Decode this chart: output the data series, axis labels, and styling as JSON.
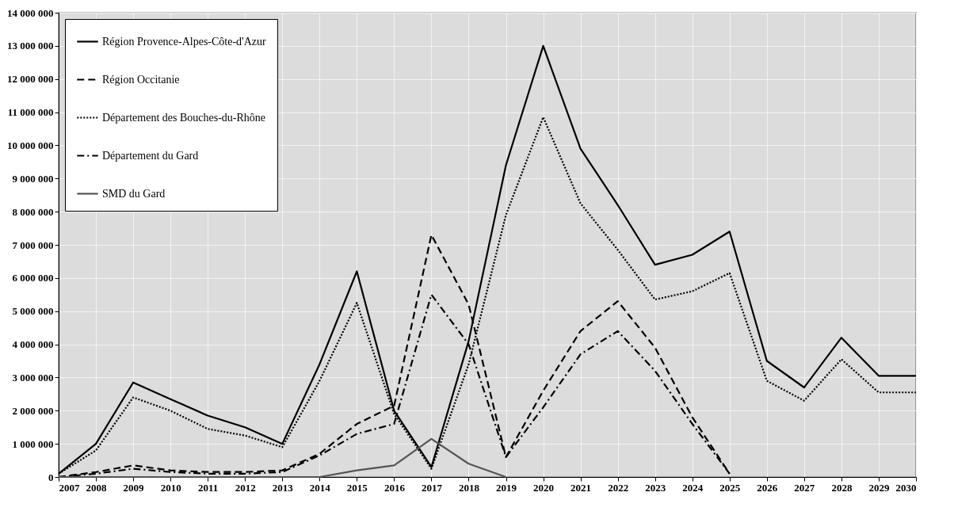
{
  "chart_data": {
    "type": "line",
    "x": [
      2007,
      2008,
      2009,
      2010,
      2011,
      2012,
      2013,
      2014,
      2015,
      2016,
      2017,
      2018,
      2019,
      2020,
      2021,
      2022,
      2023,
      2024,
      2025,
      2026,
      2027,
      2028,
      2029,
      2030
    ],
    "series": [
      {
        "name": "Région Provence-Alpes-Côte-d'Azur",
        "color": "#000000",
        "line_style": "solid",
        "values": [
          100000,
          1000000,
          2850000,
          2350000,
          1850000,
          1500000,
          1000000,
          3400000,
          6200000,
          2000000,
          300000,
          4100000,
          9400000,
          13000000,
          9900000,
          8200000,
          6400000,
          6700000,
          7400000,
          3500000,
          2700000,
          4200000,
          3050000,
          3050000
        ]
      },
      {
        "name": "Région Occitanie",
        "color": "#000000",
        "line_style": "dashed",
        "values": [
          0,
          150000,
          350000,
          200000,
          150000,
          150000,
          200000,
          700000,
          1600000,
          2150000,
          7300000,
          5200000,
          600000,
          2600000,
          4400000,
          5300000,
          3900000,
          1800000,
          100000,
          null,
          null,
          null,
          null,
          null
        ]
      },
      {
        "name": "Département des Bouches-du-Rhône",
        "color": "#000000",
        "line_style": "dotted",
        "values": [
          100000,
          800000,
          2400000,
          2000000,
          1450000,
          1250000,
          900000,
          2900000,
          5250000,
          1900000,
          250000,
          3400000,
          7900000,
          10850000,
          8250000,
          6850000,
          5350000,
          5600000,
          6150000,
          2900000,
          2300000,
          3550000,
          2550000,
          2550000
        ]
      },
      {
        "name": "Département du Gard",
        "color": "#000000",
        "line_style": "dashdot",
        "values": [
          0,
          100000,
          250000,
          150000,
          100000,
          100000,
          150000,
          650000,
          1300000,
          1600000,
          5500000,
          4000000,
          600000,
          2100000,
          3700000,
          4400000,
          3200000,
          1600000,
          100000,
          null,
          null,
          null,
          null,
          null
        ]
      },
      {
        "name": "SMD du Gard",
        "color": "#555555",
        "line_style": "solid",
        "values": [
          0,
          0,
          0,
          0,
          0,
          0,
          0,
          0,
          200000,
          350000,
          1150000,
          400000,
          0,
          null,
          null,
          null,
          null,
          null,
          null,
          null,
          null,
          null,
          null,
          null
        ]
      }
    ],
    "xlim": [
      2007,
      2030
    ],
    "xticks": [
      2007,
      2008,
      2009,
      2010,
      2011,
      2012,
      2013,
      2014,
      2015,
      2016,
      2017,
      2018,
      2019,
      2020,
      2021,
      2022,
      2023,
      2024,
      2025,
      2026,
      2027,
      2028,
      2029,
      2030
    ],
    "ylim": [
      0,
      14000000
    ],
    "yticks": [
      {
        "value": 0,
        "label": "0"
      },
      {
        "value": 1000000,
        "label": "1 000 000"
      },
      {
        "value": 2000000,
        "label": "2 000 000"
      },
      {
        "value": 3000000,
        "label": "3 000 000"
      },
      {
        "value": 4000000,
        "label": "4 000 000"
      },
      {
        "value": 5000000,
        "label": "5 000 000"
      },
      {
        "value": 6000000,
        "label": "6 000 000"
      },
      {
        "value": 7000000,
        "label": "7 000 000"
      },
      {
        "value": 8000000,
        "label": "8 000 000"
      },
      {
        "value": 9000000,
        "label": "9 000 000"
      },
      {
        "value": 10000000,
        "label": "10 000 000"
      },
      {
        "value": 11000000,
        "label": "11 000 000"
      },
      {
        "value": 12000000,
        "label": "12 000 000"
      },
      {
        "value": 13000000,
        "label": "13 000 000"
      },
      {
        "value": 14000000,
        "label": "14 000 000"
      }
    ],
    "grid": true,
    "legend": "top left",
    "marker": "none"
  }
}
